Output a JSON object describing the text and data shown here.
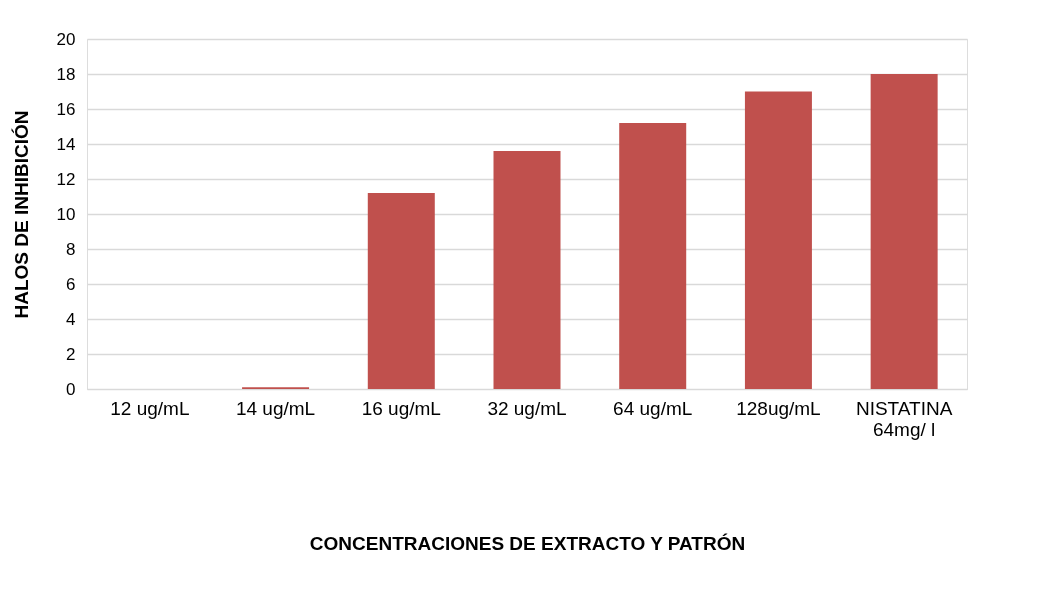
{
  "chart_data": {
    "type": "bar",
    "xlabel": "CONCENTRACIONES DE EXTRACTO Y PATRÓN",
    "ylabel": "HALOS DE INHIBICIÓN",
    "categories": [
      "12 ug/mL",
      "14 ug/mL",
      "16 ug/mL",
      "32 ug/mL",
      "64 ug/mL",
      "128ug/mL",
      "NISTATINA\n64mg/ l"
    ],
    "values": [
      0,
      0.1,
      11.2,
      13.6,
      15.2,
      17,
      18
    ],
    "color": "#c0504d",
    "ylim": [
      0,
      20
    ],
    "yticks": [
      0,
      2,
      4,
      6,
      8,
      10,
      12,
      14,
      16,
      18,
      20
    ],
    "grid": "y"
  }
}
